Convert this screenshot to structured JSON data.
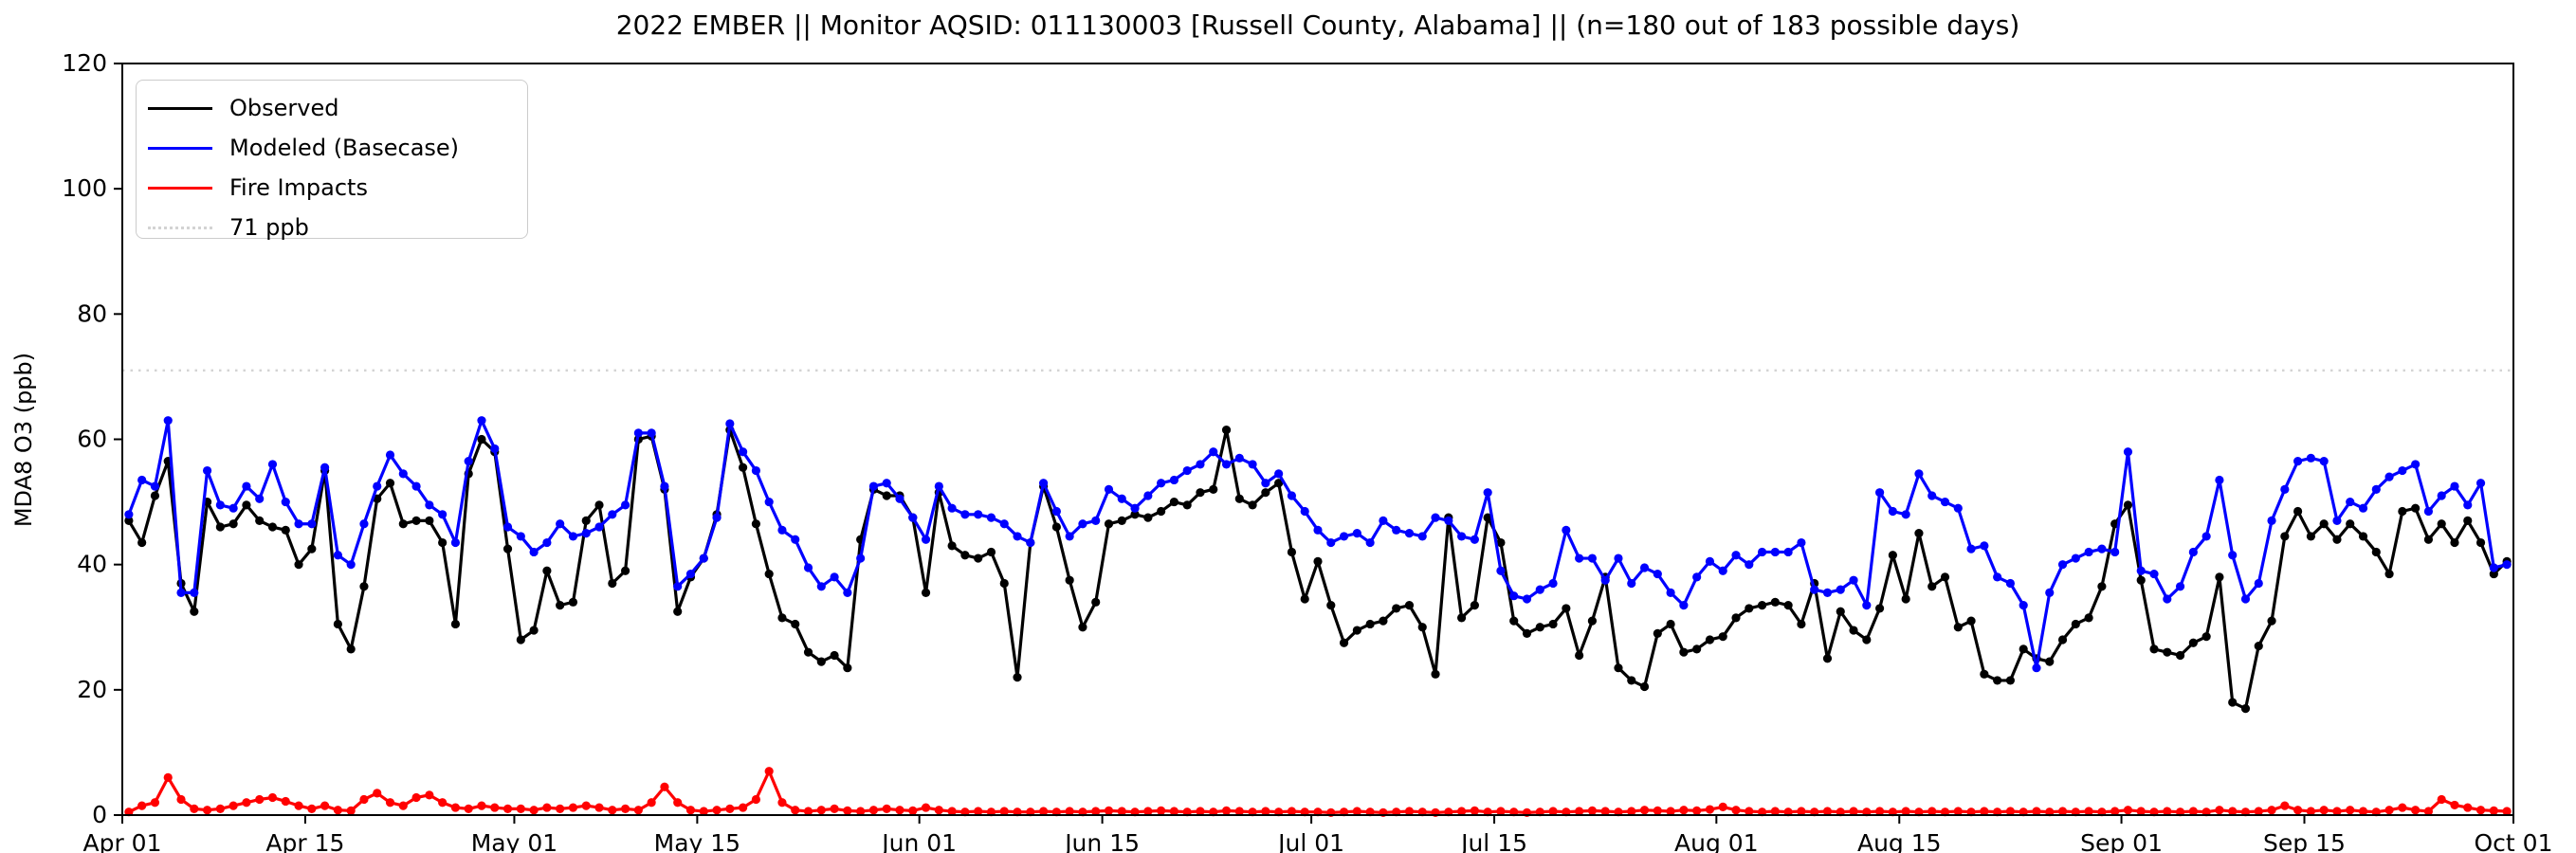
{
  "title": "2022 EMBER || Monitor AQSID: 011130003 [Russell County, Alabama] || (n=180 out of 183 possible days)",
  "axes": {
    "ylabel": "MDA8 O3 (ppb)",
    "ylim": [
      0,
      120
    ],
    "y_ticks": [
      0,
      20,
      40,
      60,
      80,
      100,
      120
    ],
    "x_tick_labels": [
      "Apr 01",
      "Apr 15",
      "May 01",
      "May 15",
      "Jun 01",
      "Jun 15",
      "Jul 01",
      "Jul 15",
      "Aug 01",
      "Aug 15",
      "Sep 01",
      "Sep 15",
      "Oct 01"
    ],
    "x_tick_days": [
      0,
      14,
      30,
      44,
      61,
      75,
      91,
      105,
      122,
      136,
      153,
      167,
      183
    ],
    "x_range_days": 183,
    "grid": false
  },
  "threshold": {
    "value": 71,
    "label": "71 ppb",
    "color": "#d3d3d3"
  },
  "legend": {
    "position": "upper-left",
    "items": [
      {
        "label": "Observed",
        "color": "#000000",
        "dotted": false
      },
      {
        "label": "Modeled (Basecase)",
        "color": "#0000ff",
        "dotted": false
      },
      {
        "label": "Fire Impacts",
        "color": "#ff0000",
        "dotted": false
      },
      {
        "label": "71 ppb",
        "color": "#d3d3d3",
        "dotted": true
      }
    ]
  },
  "chart_data": {
    "type": "line",
    "title": "2022 EMBER || Monitor AQSID: 011130003 [Russell County, Alabama] || (n=180 out of 183 possible days)",
    "xlabel": "",
    "ylabel": "MDA8 O3 (ppb)",
    "ylim": [
      0,
      120
    ],
    "x_start": "Apr 01",
    "x_end": "Sep 30",
    "x_unit": "daily values, 2022 ozone season",
    "n_days_label": "n=180 out of 183 possible days",
    "threshold_ppb": 71,
    "legend_position": "upper-left",
    "series": [
      {
        "name": "Observed",
        "color": "#000000",
        "values": [
          47,
          43.5,
          51,
          56.5,
          37,
          32.5,
          50,
          46,
          46.5,
          49.5,
          47,
          46,
          45.5,
          40,
          42.5,
          55,
          30.5,
          26.5,
          36.5,
          50.5,
          53,
          46.5,
          47,
          47,
          43.5,
          30.5,
          54.5,
          60,
          58,
          42.5,
          28,
          29.5,
          39,
          33.5,
          34,
          47,
          49.5,
          37,
          39,
          60,
          60.5,
          52,
          32.5,
          38,
          41,
          48,
          61.5,
          55.5,
          46.5,
          38.5,
          31.5,
          30.5,
          26,
          24.5,
          25.5,
          23.5,
          44,
          52,
          51,
          51,
          47.5,
          35.5,
          51.5,
          43,
          41.5,
          41,
          42,
          37,
          22,
          43.5,
          52.5,
          46,
          37.5,
          30,
          34,
          46.5,
          47,
          48,
          47.5,
          48.5,
          50,
          49.5,
          51.5,
          52,
          61.5,
          50.5,
          49.5,
          51.5,
          53,
          42,
          34.5,
          40.5,
          33.5,
          27.5,
          29.5,
          30.5,
          31,
          33,
          33.5,
          30,
          22.5,
          47.5,
          31.5,
          33.5,
          47.5,
          43.5,
          31,
          29,
          30,
          30.5,
          33,
          25.5,
          31,
          38,
          23.5,
          21.5,
          20.5,
          29,
          30.5,
          26,
          26.5,
          28,
          28.5,
          31.5,
          33,
          33.5,
          34,
          33.5,
          30.5,
          37,
          25,
          32.5,
          29.5,
          28,
          33,
          41.5,
          34.5,
          45,
          36.5,
          38,
          30,
          31,
          22.5,
          21.5,
          21.5,
          26.5,
          25,
          24.5,
          28,
          30.5,
          31.5,
          36.5,
          46.5,
          49.5,
          37.5,
          26.5,
          26,
          25.5,
          27.5,
          28.5,
          38,
          18,
          17,
          27,
          31,
          44.5,
          48.5,
          44.5,
          46.5,
          44,
          46.5,
          44.5,
          42,
          38.5,
          48.5,
          49,
          44,
          46.5,
          43.5,
          47,
          43.5,
          38.5,
          40.5
        ]
      },
      {
        "name": "Modeled (Basecase)",
        "color": "#0000ff",
        "values": [
          48,
          53.5,
          52.5,
          63,
          35.5,
          35.5,
          55,
          49.5,
          49,
          52.5,
          50.5,
          56,
          50,
          46.5,
          46.5,
          55.5,
          41.5,
          40,
          46.5,
          52.5,
          57.5,
          54.5,
          52.5,
          49.5,
          48,
          43.5,
          56.5,
          63,
          58.5,
          46,
          44.5,
          42,
          43.5,
          46.5,
          44.5,
          45,
          46,
          48,
          49.5,
          61,
          61,
          52.5,
          36.5,
          38.5,
          41,
          47.5,
          62.5,
          58,
          55,
          50,
          45.5,
          44,
          39.5,
          36.5,
          38,
          35.5,
          41,
          52.5,
          53,
          50.5,
          47.5,
          44,
          52.5,
          49,
          48,
          48,
          47.5,
          46.5,
          44.5,
          43.5,
          53,
          48.5,
          44.5,
          46.5,
          47,
          52,
          50.5,
          49,
          51,
          53,
          53.5,
          55,
          56,
          58,
          56,
          57,
          56,
          53,
          54.5,
          51,
          48.5,
          45.5,
          43.5,
          44.5,
          45,
          43.5,
          47,
          45.5,
          45,
          44.5,
          47.5,
          47,
          44.5,
          44,
          51.5,
          39,
          35,
          34.5,
          36,
          37,
          45.5,
          41,
          41,
          37.5,
          41,
          37,
          39.5,
          38.5,
          35.5,
          33.5,
          38,
          40.5,
          39,
          41.5,
          40,
          42,
          42,
          42,
          43.5,
          36,
          35.5,
          36,
          37.5,
          33.5,
          51.5,
          48.5,
          48,
          54.5,
          51,
          50,
          49,
          42.5,
          43,
          38,
          37,
          33.5,
          23.5,
          35.5,
          40,
          41,
          42,
          42.5,
          42,
          58,
          39,
          38.5,
          34.5,
          36.5,
          42,
          44.5,
          53.5,
          41.5,
          34.5,
          37,
          47,
          52,
          56.5,
          57,
          56.5,
          47,
          50,
          49,
          52,
          54,
          55,
          56,
          48.5,
          51,
          52.5,
          49.5,
          53,
          39.5,
          40
        ]
      },
      {
        "name": "Fire Impacts",
        "color": "#ff0000",
        "values": [
          0.5,
          1.5,
          2,
          6,
          2.5,
          1,
          0.8,
          1,
          1.5,
          2,
          2.5,
          2.8,
          2.2,
          1.5,
          1,
          1.5,
          0.8,
          0.7,
          2.5,
          3.5,
          2,
          1.5,
          2.8,
          3.2,
          2,
          1.2,
          1,
          1.5,
          1.2,
          1,
          1,
          0.8,
          1.2,
          1,
          1.2,
          1.5,
          1.2,
          0.8,
          1,
          0.8,
          2,
          4.5,
          2,
          0.8,
          0.6,
          0.8,
          1,
          1.2,
          2.5,
          7,
          2,
          0.8,
          0.6,
          0.8,
          1,
          0.7,
          0.6,
          0.8,
          1,
          0.8,
          0.7,
          1.2,
          0.8,
          0.6,
          0.5,
          0.6,
          0.5,
          0.6,
          0.5,
          0.5,
          0.6,
          0.5,
          0.6,
          0.5,
          0.6,
          0.7,
          0.6,
          0.5,
          0.6,
          0.7,
          0.6,
          0.5,
          0.6,
          0.5,
          0.7,
          0.6,
          0.5,
          0.6,
          0.5,
          0.6,
          0.5,
          0.5,
          0.4,
          0.5,
          0.6,
          0.5,
          0.4,
          0.5,
          0.6,
          0.5,
          0.4,
          0.5,
          0.6,
          0.7,
          0.5,
          0.6,
          0.5,
          0.4,
          0.5,
          0.6,
          0.5,
          0.6,
          0.7,
          0.6,
          0.5,
          0.6,
          0.8,
          0.7,
          0.6,
          0.8,
          0.7,
          0.9,
          1.3,
          0.8,
          0.6,
          0.5,
          0.6,
          0.5,
          0.6,
          0.5,
          0.6,
          0.5,
          0.6,
          0.5,
          0.6,
          0.5,
          0.6,
          0.5,
          0.6,
          0.5,
          0.6,
          0.5,
          0.6,
          0.5,
          0.6,
          0.5,
          0.6,
          0.5,
          0.6,
          0.5,
          0.6,
          0.5,
          0.6,
          0.8,
          0.6,
          0.5,
          0.6,
          0.5,
          0.6,
          0.5,
          0.8,
          0.6,
          0.5,
          0.6,
          0.8,
          1.5,
          0.8,
          0.6,
          0.8,
          0.6,
          0.8,
          0.6,
          0.5,
          0.8,
          1.2,
          0.8,
          0.6,
          2.5,
          1.6,
          1.2,
          0.8,
          0.7,
          0.6
        ]
      }
    ]
  }
}
